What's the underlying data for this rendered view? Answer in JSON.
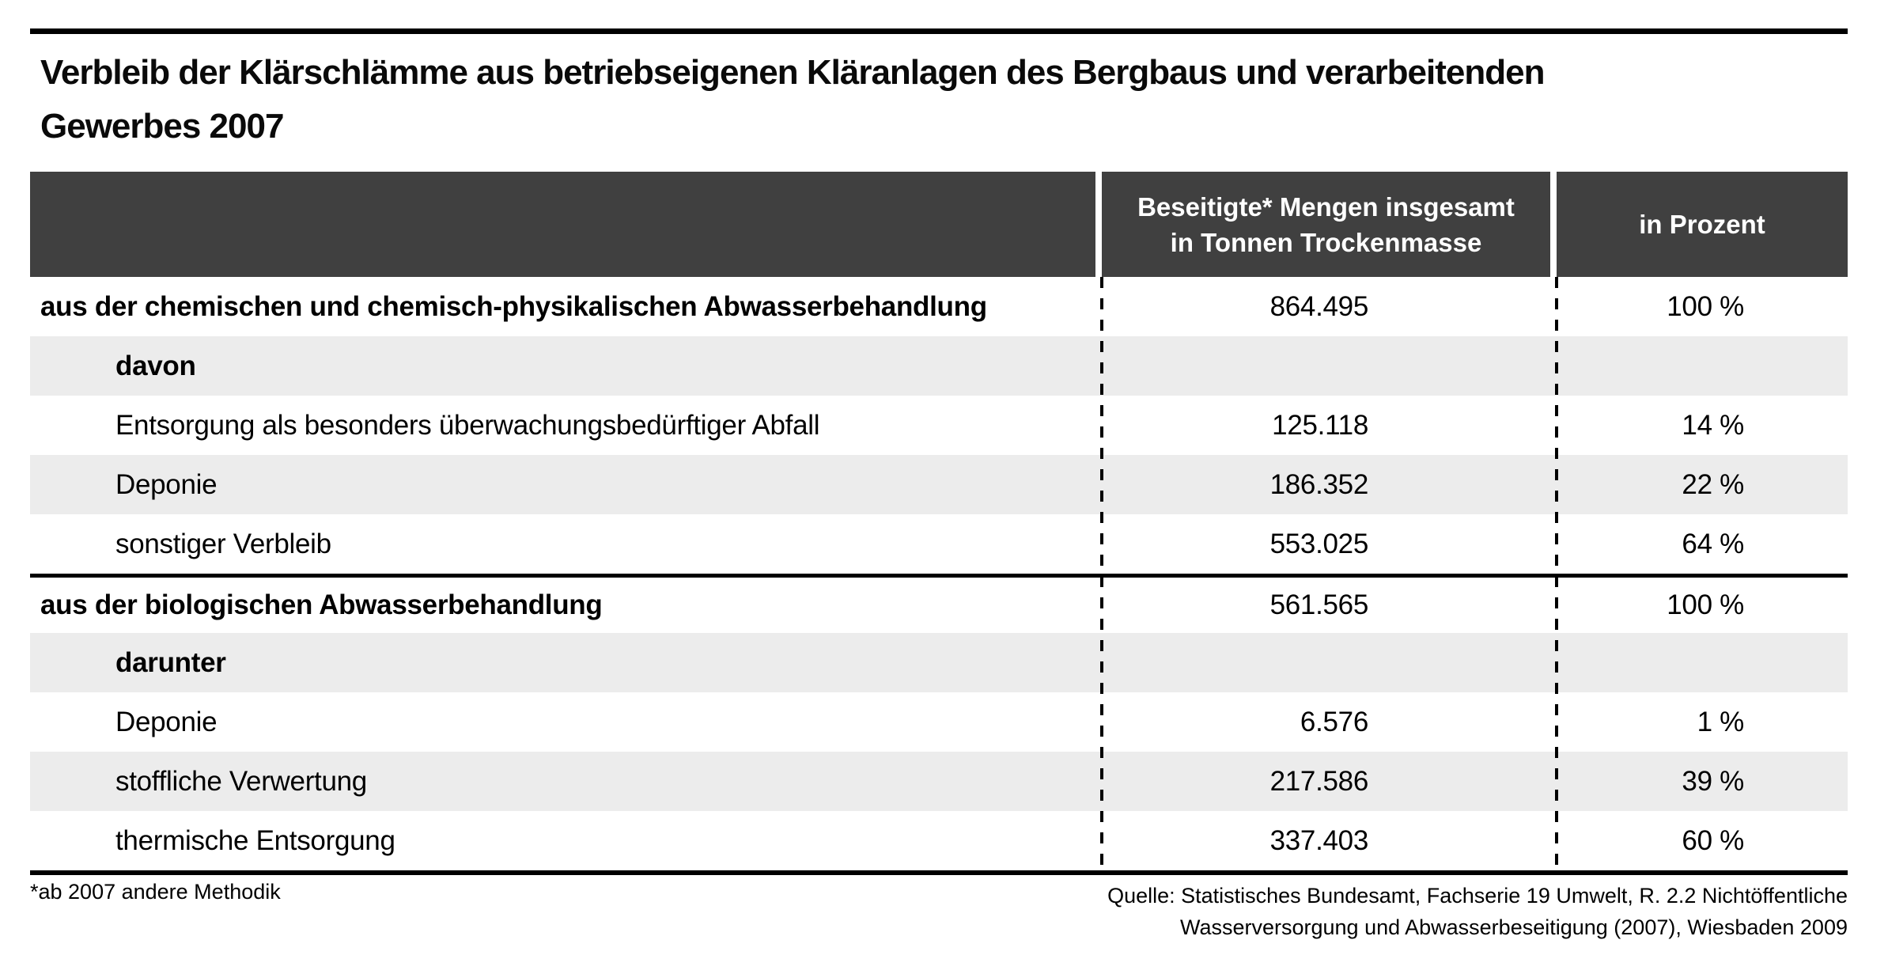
{
  "title": "Verbleib der Klärschlämme aus betriebseigenen Kläranlagen des Bergbaus und verarbeitenden Gewerbes 2007",
  "title_lines": [
    "Verbleib der Klärschlämme aus betriebseigenen Kläranlagen des Bergbaus und verarbeitenden",
    "Gewerbes 2007"
  ],
  "table": {
    "header": {
      "amount_line1": "Beseitigte* Mengen insgesamt",
      "amount_line2": "in Tonnen Trockenmasse",
      "percent": "in Prozent"
    },
    "rows": [
      {
        "label": "aus der chemischen und chemisch-physikalischen Abwasserbehandlung",
        "amount": "864.495",
        "percent": "100 %"
      },
      {
        "label": "davon",
        "amount": "",
        "percent": ""
      },
      {
        "label": "Entsorgung als besonders überwachungsbedürftiger Abfall",
        "amount": "125.118",
        "percent": "14 %"
      },
      {
        "label": "Deponie",
        "amount": "186.352",
        "percent": "22 %"
      },
      {
        "label": "sonstiger Verbleib",
        "amount": "553.025",
        "percent": "64 %"
      },
      {
        "label": "aus der biologischen Abwasserbehandlung",
        "amount": "561.565",
        "percent": "100 %"
      },
      {
        "label": "darunter",
        "amount": "",
        "percent": ""
      },
      {
        "label": "Deponie",
        "amount": "6.576",
        "percent": "1 %"
      },
      {
        "label": "stoffliche Verwertung",
        "amount": "217.586",
        "percent": "39 %"
      },
      {
        "label": "thermische Entsorgung",
        "amount": "337.403",
        "percent": "60 %"
      }
    ]
  },
  "footer": {
    "footnote": "*ab 2007 andere Methodik",
    "source": "Quelle: Statistisches Bundesamt, Fachserie 19 Umwelt, R. 2.2 Nichtöffentliche Wasserversorgung und Abwasserbeseitigung (2007), Wiesbaden 2009",
    "source_lines": [
      "Quelle: Statistisches Bundesamt, Fachserie 19 Umwelt, R. 2.2 Nichtöffentliche",
      "Wasserversorgung und Abwasserbeseitigung (2007), Wiesbaden 2009"
    ]
  },
  "colors": {
    "header_bg": "#404040",
    "row_shaded": "#ececec",
    "rule": "#000000",
    "text": "#000000",
    "header_text": "#ffffff"
  }
}
